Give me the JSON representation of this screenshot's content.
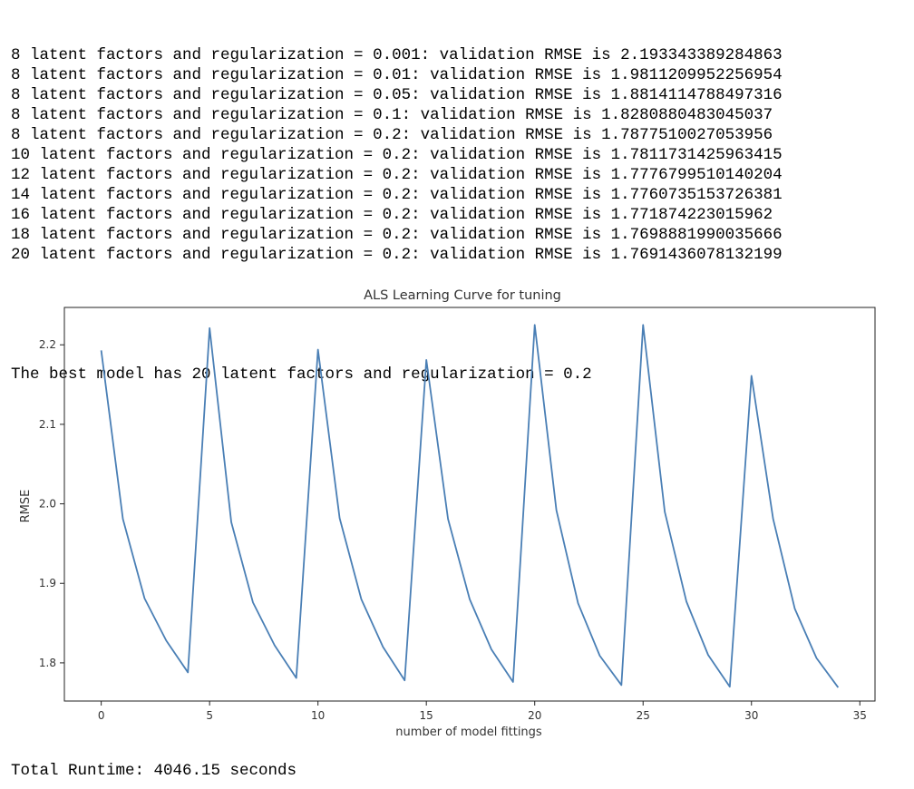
{
  "output": {
    "lines": [
      "8 latent factors and regularization = 0.001: validation RMSE is 2.193343389284863",
      "8 latent factors and regularization = 0.01: validation RMSE is 1.9811209952256954",
      "8 latent factors and regularization = 0.05: validation RMSE is 1.8814114788497316",
      "8 latent factors and regularization = 0.1: validation RMSE is 1.8280880483045037",
      "8 latent factors and regularization = 0.2: validation RMSE is 1.7877510027053956",
      "10 latent factors and regularization = 0.2: validation RMSE is 1.7811731425963415",
      "12 latent factors and regularization = 0.2: validation RMSE is 1.7776799510140204",
      "14 latent factors and regularization = 0.2: validation RMSE is 1.7760735153726381",
      "16 latent factors and regularization = 0.2: validation RMSE is 1.771874223015962",
      "18 latent factors and regularization = 0.2: validation RMSE is 1.7698881990035666",
      "20 latent factors and regularization = 0.2: validation RMSE is 1.7691436078132199"
    ],
    "best_model": "The best model has 20 latent factors and regularization = 0.2",
    "runtime": "Total Runtime: 4046.15 seconds"
  },
  "chart_data": {
    "type": "line",
    "title": "ALS Learning Curve for tuning",
    "xlabel": "number of model fittings",
    "ylabel": "RMSE",
    "xlim": [
      -1.7,
      35.7
    ],
    "ylim": [
      1.752,
      2.247
    ],
    "xticks": [
      0,
      5,
      10,
      15,
      20,
      25,
      30,
      35
    ],
    "yticks": [
      1.8,
      1.9,
      2.0,
      2.1,
      2.2
    ],
    "grid": false,
    "line_color": "#4a7fb5",
    "x": [
      0,
      1,
      2,
      3,
      4,
      5,
      6,
      7,
      8,
      9,
      10,
      11,
      12,
      13,
      14,
      15,
      16,
      17,
      18,
      19,
      20,
      21,
      22,
      23,
      24,
      25,
      26,
      27,
      28,
      29,
      30,
      31,
      32,
      33,
      34
    ],
    "y": [
      2.193,
      1.981,
      1.881,
      1.828,
      1.788,
      2.221,
      1.977,
      1.876,
      1.822,
      1.781,
      2.194,
      1.982,
      1.88,
      1.82,
      1.778,
      2.181,
      1.981,
      1.88,
      1.817,
      1.776,
      2.225,
      1.992,
      1.875,
      1.809,
      1.772,
      2.225,
      1.99,
      1.877,
      1.81,
      1.77,
      2.161,
      1.981,
      1.868,
      1.806,
      1.769
    ]
  }
}
